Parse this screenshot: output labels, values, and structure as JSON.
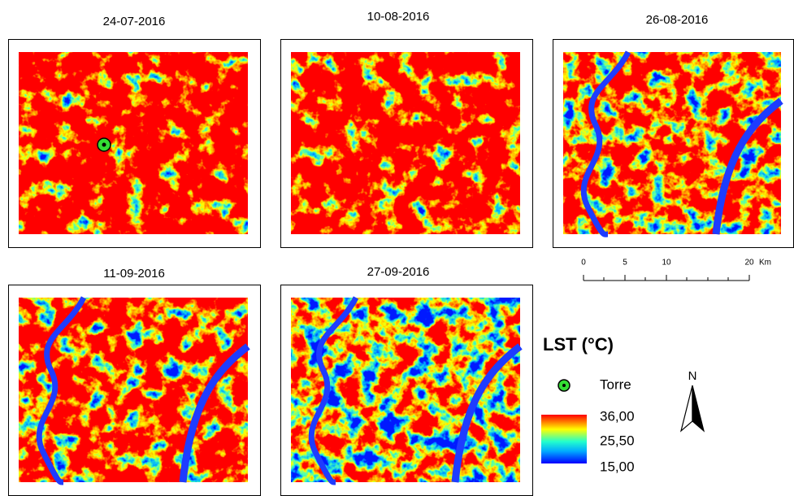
{
  "panels": [
    {
      "date": "24-07-2016"
    },
    {
      "date": "10-08-2016"
    },
    {
      "date": "26-08-2016"
    },
    {
      "date": "11-09-2016"
    },
    {
      "date": "27-09-2016"
    }
  ],
  "scale_bar": {
    "ticks": [
      "0",
      "5",
      "10",
      "20"
    ],
    "unit": "Km"
  },
  "legend": {
    "title": "LST (°C)",
    "point_label": "Torre",
    "ramp_labels": [
      "36,00",
      "25,50",
      "15,00"
    ]
  },
  "north": "N"
}
